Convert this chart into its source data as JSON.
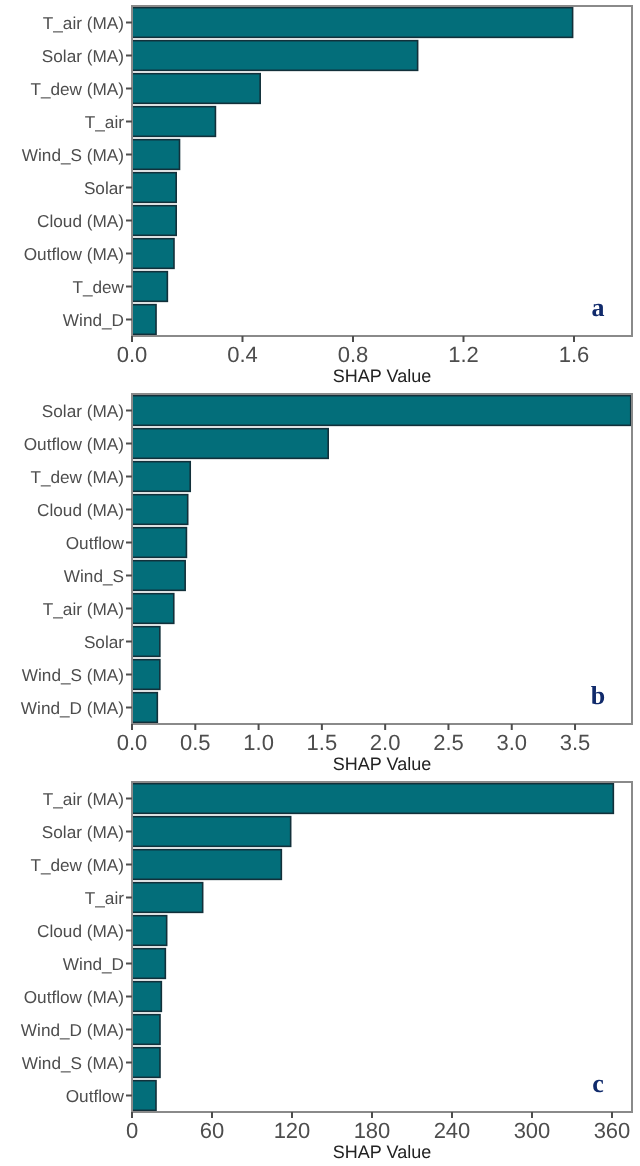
{
  "chart_data": [
    {
      "type": "bar",
      "orientation": "horizontal",
      "xlabel": "SHAP Value",
      "annotations": [
        "a"
      ],
      "categories": [
        "T_air (MA)",
        "Solar (MA)",
        "T_dew (MA)",
        "T_air",
        "Wind_S (MA)",
        "Solar",
        "Cloud (MA)",
        "Outflow (MA)",
        "T_dew",
        "Wind_D"
      ],
      "values": [
        1.595,
        1.034,
        0.464,
        0.302,
        0.172,
        0.16,
        0.16,
        0.152,
        0.128,
        0.087
      ],
      "color": "#036e7a",
      "xlim": [
        0,
        1.81
      ],
      "xticks": [
        {
          "value": 0,
          "label": "0.0"
        },
        0.4,
        0.8,
        1.2,
        1.6
      ]
    },
    {
      "type": "bar",
      "orientation": "horizontal",
      "xlabel": "SHAP Value",
      "annotations": [
        "b"
      ],
      "categories": [
        "Solar (MA)",
        "Outflow (MA)",
        "T_dew (MA)",
        "Cloud (MA)",
        "Outflow",
        "Wind_S",
        "T_air (MA)",
        "Solar",
        "Wind_S (MA)",
        "Wind_D (MA)"
      ],
      "values": [
        3.94,
        1.55,
        0.46,
        0.44,
        0.43,
        0.42,
        0.33,
        0.22,
        0.22,
        0.2
      ],
      "color": "#036e7a",
      "xlim": [
        0,
        3.95
      ],
      "xticks": [
        {
          "value": 0,
          "label": "0.0"
        },
        0.5,
        {
          "value": 1,
          "label": "1.0"
        },
        1.5,
        {
          "value": 2,
          "label": "2.0"
        },
        2.5,
        {
          "value": 3,
          "label": "3.0"
        },
        3.5
      ]
    },
    {
      "type": "bar",
      "orientation": "horizontal",
      "xlabel": "SHAP Value",
      "annotations": [
        "c"
      ],
      "categories": [
        "T_air (MA)",
        "Solar (MA)",
        "T_dew (MA)",
        "T_air",
        "Cloud (MA)",
        "Wind_D",
        "Outflow (MA)",
        "Wind_D (MA)",
        "Wind_S (MA)",
        "Outflow"
      ],
      "values": [
        361,
        119,
        112,
        53,
        26,
        25,
        22,
        21,
        21,
        18
      ],
      "color": "#036e7a",
      "xlim": [
        0,
        375
      ],
      "xticks": [
        0,
        60,
        120,
        180,
        240,
        300,
        360
      ]
    }
  ]
}
